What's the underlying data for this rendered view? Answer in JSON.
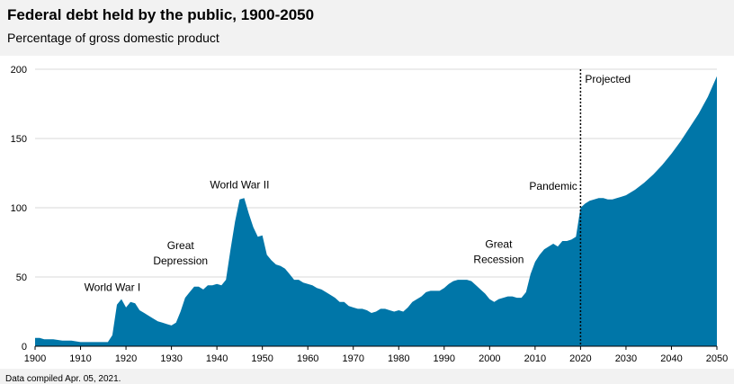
{
  "header": {
    "title": "Federal debt held by the public, 1900-2050",
    "subtitle": "Percentage of gross domestic product"
  },
  "footer": {
    "text": "Data compiled Apr. 05, 2021."
  },
  "chart_data": {
    "type": "area",
    "title": "Federal debt held by the public, 1900-2050",
    "subtitle": "Percentage of gross domestic product",
    "xlabel": "",
    "ylabel": "",
    "xlim": [
      1900,
      2050
    ],
    "ylim": [
      0,
      200
    ],
    "xticks": [
      1900,
      1910,
      1920,
      1930,
      1940,
      1950,
      1960,
      1970,
      1980,
      1990,
      2000,
      2010,
      2020,
      2030,
      2040,
      2050
    ],
    "yticks": [
      0,
      50,
      100,
      150,
      200
    ],
    "grid": "horizontal",
    "fill_color": "#0076a8",
    "series": [
      {
        "x": [
          1900,
          1901,
          1902,
          1904,
          1906,
          1908,
          1910,
          1912,
          1914,
          1916,
          1917,
          1918,
          1919,
          1920,
          1921,
          1922,
          1923,
          1924,
          1925,
          1926,
          1927,
          1928,
          1929,
          1930,
          1931,
          1932,
          1933,
          1934,
          1935,
          1936,
          1937,
          1938,
          1939,
          1940,
          1941,
          1942,
          1943,
          1944,
          1945,
          1946,
          1947,
          1948,
          1949,
          1950,
          1951,
          1952,
          1953,
          1954,
          1955,
          1956,
          1957,
          1958,
          1959,
          1960,
          1961,
          1962,
          1963,
          1964,
          1965,
          1966,
          1967,
          1968,
          1969,
          1970,
          1971,
          1972,
          1973,
          1974,
          1975,
          1976,
          1977,
          1978,
          1979,
          1980,
          1981,
          1982,
          1983,
          1984,
          1985,
          1986,
          1987,
          1988,
          1989,
          1990,
          1991,
          1992,
          1993,
          1994,
          1995,
          1996,
          1997,
          1998,
          1999,
          2000,
          2001,
          2002,
          2003,
          2004,
          2005,
          2006,
          2007,
          2008,
          2009,
          2010,
          2011,
          2012,
          2013,
          2014,
          2015,
          2016,
          2017,
          2018,
          2019,
          2020,
          2021,
          2022,
          2023,
          2024,
          2025,
          2026,
          2027,
          2028,
          2029,
          2030,
          2032,
          2034,
          2036,
          2038,
          2040,
          2042,
          2044,
          2046,
          2048,
          2050
        ],
        "values": [
          6,
          6,
          5,
          5,
          4,
          4,
          3,
          3,
          3,
          3,
          8,
          30,
          34,
          28,
          32,
          31,
          26,
          24,
          22,
          20,
          18,
          17,
          16,
          15,
          17,
          25,
          35,
          39,
          43,
          43,
          41,
          44,
          44,
          45,
          44,
          48,
          70,
          90,
          106,
          107,
          96,
          86,
          79,
          80,
          66,
          62,
          59,
          58,
          56,
          52,
          48,
          48,
          46,
          45,
          44,
          42,
          41,
          39,
          37,
          35,
          32,
          32,
          29,
          28,
          27,
          27,
          26,
          24,
          25,
          27,
          27,
          26,
          25,
          26,
          25,
          28,
          32,
          34,
          36,
          39,
          40,
          40,
          40,
          42,
          45,
          47,
          48,
          48,
          48,
          47,
          44,
          41,
          38,
          34,
          32,
          34,
          35,
          36,
          36,
          35,
          35,
          39,
          52,
          61,
          66,
          70,
          72,
          74,
          72,
          76,
          76,
          77,
          79,
          100,
          103,
          105,
          106,
          107,
          107,
          106,
          106,
          107,
          108,
          109,
          113,
          118,
          124,
          131,
          139,
          148,
          158,
          168,
          180,
          195
        ]
      }
    ],
    "divider": {
      "x": 2020,
      "label": "Projected",
      "style": "dotted"
    },
    "annotations": [
      {
        "text": "World War I",
        "x": 1917,
        "y": 40
      },
      {
        "text": "Great",
        "x": 1932,
        "y": 70
      },
      {
        "text": "Depression",
        "x": 1932,
        "y": 59
      },
      {
        "text": "World War II",
        "x": 1945,
        "y": 114
      },
      {
        "text": "Great",
        "x": 2002,
        "y": 71
      },
      {
        "text": "Recession",
        "x": 2002,
        "y": 60
      },
      {
        "text": "Pandemic",
        "x": 2014,
        "y": 113
      }
    ]
  }
}
